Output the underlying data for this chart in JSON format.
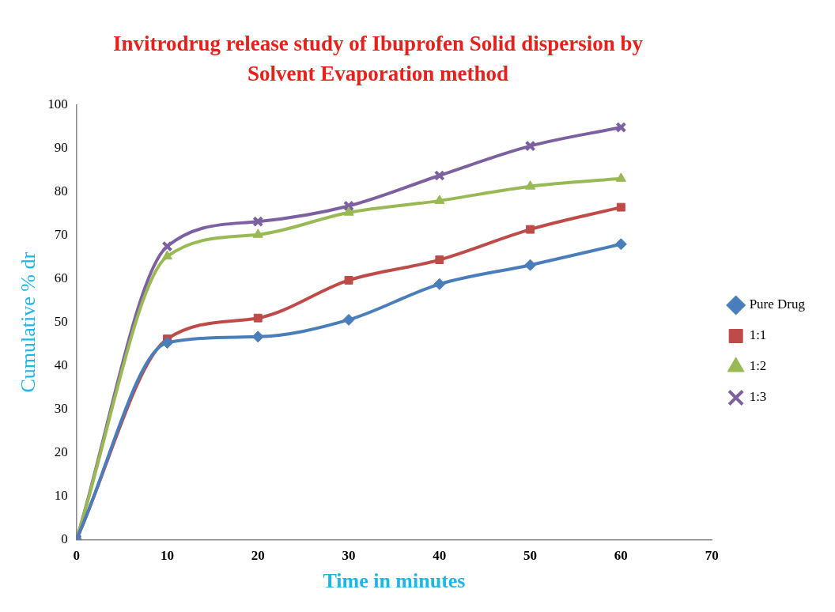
{
  "chart_data": {
    "type": "line",
    "title": "Invitrodrug release study of Ibuprofen Solid dispersion by Solvent Evaporation method",
    "xlabel": "Time in minutes",
    "ylabel": "Cumulative % dr",
    "x": [
      0,
      10,
      20,
      30,
      40,
      50,
      60
    ],
    "series": [
      {
        "name": "Pure Drug",
        "color": "#4a7ebb",
        "marker": "diamond",
        "values": [
          0,
          45.3,
          46.7,
          50.6,
          58.8,
          63.2,
          68
        ]
      },
      {
        "name": "1:1",
        "color": "#be4b48",
        "marker": "square",
        "values": [
          0,
          46.2,
          51,
          59.7,
          64.4,
          71.4,
          76.5
        ]
      },
      {
        "name": "1:2",
        "color": "#98b954",
        "marker": "triangle",
        "values": [
          0,
          65.2,
          70.2,
          75.3,
          78,
          81.3,
          83.1
        ]
      },
      {
        "name": "1:3",
        "color": "#7d60a0",
        "marker": "cross",
        "values": [
          0,
          67.5,
          73.2,
          76.8,
          83.8,
          90.6,
          94.9
        ]
      }
    ],
    "xlim": [
      0,
      70
    ],
    "xticks": [
      0,
      10,
      20,
      30,
      40,
      50,
      60,
      70
    ],
    "ylim": [
      0,
      100
    ],
    "yticks": [
      0,
      10,
      20,
      30,
      40,
      50,
      60,
      70,
      80,
      90,
      100
    ],
    "grid": false,
    "legend": "right",
    "line_style": "solid"
  }
}
